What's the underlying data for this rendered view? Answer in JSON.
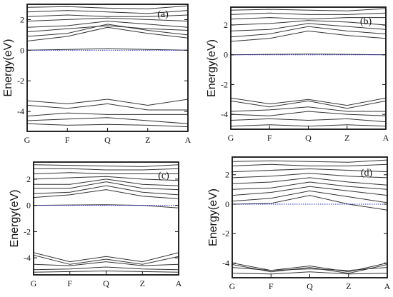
{
  "chart_data": [
    {
      "type": "line",
      "panel_label": "(a)",
      "ylabel": "Energy(eV)",
      "ylim": [
        -5.3,
        3.0
      ],
      "yticks": [
        2,
        0,
        -2,
        -4
      ],
      "xticks": [
        "G",
        "F",
        "Q",
        "Z",
        "A"
      ],
      "fermi_level": 0,
      "series": [
        {
          "x": [
            0,
            1,
            2,
            3,
            4
          ],
          "y": [
            0.0,
            0.05,
            0.1,
            0.05,
            0.0
          ]
        },
        {
          "x": [
            0,
            1,
            2,
            3,
            4
          ],
          "y": [
            0.6,
            0.9,
            1.5,
            1.1,
            0.8
          ]
        },
        {
          "x": [
            0,
            1,
            2,
            3,
            4
          ],
          "y": [
            0.9,
            1.1,
            1.7,
            1.3,
            1.0
          ]
        },
        {
          "x": [
            0,
            1,
            2,
            3,
            4
          ],
          "y": [
            1.2,
            1.4,
            1.6,
            1.4,
            1.3
          ]
        },
        {
          "x": [
            0,
            1,
            2,
            3,
            4
          ],
          "y": [
            1.5,
            1.6,
            1.9,
            1.7,
            1.5
          ]
        },
        {
          "x": [
            0,
            1,
            2,
            3,
            4
          ],
          "y": [
            1.9,
            2.0,
            2.1,
            2.0,
            1.9
          ]
        },
        {
          "x": [
            0,
            1,
            2,
            3,
            4
          ],
          "y": [
            2.2,
            2.3,
            2.2,
            2.2,
            2.3
          ]
        },
        {
          "x": [
            0,
            1,
            2,
            3,
            4
          ],
          "y": [
            2.5,
            2.6,
            2.5,
            2.4,
            2.6
          ]
        },
        {
          "x": [
            0,
            1,
            2,
            3,
            4
          ],
          "y": [
            2.8,
            2.85,
            2.75,
            2.7,
            2.9
          ]
        },
        {
          "x": [
            0,
            1,
            2,
            3,
            4
          ],
          "y": [
            -3.3,
            -3.5,
            -3.2,
            -3.6,
            -3.2
          ]
        },
        {
          "x": [
            0,
            1,
            2,
            3,
            4
          ],
          "y": [
            -3.6,
            -3.8,
            -3.5,
            -3.9,
            -3.9
          ]
        },
        {
          "x": [
            0,
            1,
            2,
            3,
            4
          ],
          "y": [
            -4.3,
            -4.1,
            -4.2,
            -4.2,
            -4.2
          ]
        },
        {
          "x": [
            0,
            1,
            2,
            3,
            4
          ],
          "y": [
            -4.6,
            -4.5,
            -4.4,
            -4.6,
            -4.8
          ]
        },
        {
          "x": [
            0,
            1,
            2,
            3,
            4
          ],
          "y": [
            -4.8,
            -4.9,
            -4.85,
            -4.9,
            -5.0
          ]
        }
      ]
    },
    {
      "type": "line",
      "panel_label": "(b)",
      "ylabel": "Energy(eV)",
      "ylim": [
        -5.0,
        3.2
      ],
      "yticks": [
        2,
        0,
        -2,
        -4
      ],
      "xticks": [
        "G",
        "F",
        "Q",
        "Z",
        "A"
      ],
      "fermi_level": 0,
      "series": [
        {
          "x": [
            0,
            1,
            2,
            3,
            4
          ],
          "y": [
            0.0,
            0.03,
            0.05,
            0.03,
            0.0
          ]
        },
        {
          "x": [
            0,
            1,
            2,
            3,
            4
          ],
          "y": [
            0.9,
            1.1,
            1.6,
            1.3,
            1.1
          ]
        },
        {
          "x": [
            0,
            1,
            2,
            3,
            4
          ],
          "y": [
            1.2,
            1.4,
            1.9,
            1.6,
            1.4
          ]
        },
        {
          "x": [
            0,
            1,
            2,
            3,
            4
          ],
          "y": [
            1.6,
            1.7,
            2.1,
            1.9,
            1.7
          ]
        },
        {
          "x": [
            0,
            1,
            2,
            3,
            4
          ],
          "y": [
            2.0,
            2.1,
            2.3,
            2.2,
            2.0
          ]
        },
        {
          "x": [
            0,
            1,
            2,
            3,
            4
          ],
          "y": [
            2.4,
            2.5,
            2.4,
            2.5,
            2.5
          ]
        },
        {
          "x": [
            0,
            1,
            2,
            3,
            4
          ],
          "y": [
            2.7,
            2.8,
            2.7,
            2.7,
            2.8
          ]
        },
        {
          "x": [
            0,
            1,
            2,
            3,
            4
          ],
          "y": [
            3.0,
            3.05,
            3.0,
            2.95,
            3.1
          ]
        },
        {
          "x": [
            0,
            1,
            2,
            3,
            4
          ],
          "y": [
            -2.9,
            -3.3,
            -3.0,
            -3.4,
            -2.9
          ]
        },
        {
          "x": [
            0,
            1,
            2,
            3,
            4
          ],
          "y": [
            -3.1,
            -3.5,
            -3.1,
            -3.6,
            -3.1
          ]
        },
        {
          "x": [
            0,
            1,
            2,
            3,
            4
          ],
          "y": [
            -3.8,
            -3.7,
            -3.5,
            -3.8,
            -3.8
          ]
        },
        {
          "x": [
            0,
            1,
            2,
            3,
            4
          ],
          "y": [
            -4.0,
            -4.1,
            -3.8,
            -4.0,
            -4.1
          ]
        },
        {
          "x": [
            0,
            1,
            2,
            3,
            4
          ],
          "y": [
            -4.4,
            -4.3,
            -4.4,
            -4.3,
            -4.5
          ]
        },
        {
          "x": [
            0,
            1,
            2,
            3,
            4
          ],
          "y": [
            -4.8,
            -4.7,
            -4.8,
            -4.7,
            -4.8
          ]
        }
      ]
    },
    {
      "type": "line",
      "panel_label": "(c)",
      "ylabel": "Energy(eV)",
      "ylim": [
        -5.3,
        3.3
      ],
      "yticks": [
        2,
        0,
        -2,
        -4
      ],
      "xticks": [
        "G",
        "F",
        "Q",
        "Z",
        "A"
      ],
      "fermi_level": 0,
      "series": [
        {
          "x": [
            0,
            1,
            2,
            3,
            4
          ],
          "y": [
            0.0,
            0.03,
            0.05,
            0.0,
            -0.2
          ]
        },
        {
          "x": [
            0,
            1,
            2,
            3,
            4
          ],
          "y": [
            0.6,
            0.8,
            1.2,
            0.7,
            0.5
          ]
        },
        {
          "x": [
            0,
            1,
            2,
            3,
            4
          ],
          "y": [
            0.9,
            1.0,
            1.5,
            1.0,
            0.8
          ]
        },
        {
          "x": [
            0,
            1,
            2,
            3,
            4
          ],
          "y": [
            1.3,
            1.3,
            1.8,
            1.3,
            1.2
          ]
        },
        {
          "x": [
            0,
            1,
            2,
            3,
            4
          ],
          "y": [
            1.6,
            1.6,
            2.0,
            1.6,
            1.5
          ]
        },
        {
          "x": [
            0,
            1,
            2,
            3,
            4
          ],
          "y": [
            2.0,
            2.1,
            2.2,
            2.0,
            1.9
          ]
        },
        {
          "x": [
            0,
            1,
            2,
            3,
            4
          ],
          "y": [
            2.4,
            2.5,
            2.4,
            2.4,
            2.4
          ]
        },
        {
          "x": [
            0,
            1,
            2,
            3,
            4
          ],
          "y": [
            2.8,
            2.8,
            2.7,
            2.7,
            2.8
          ]
        },
        {
          "x": [
            0,
            1,
            2,
            3,
            4
          ],
          "y": [
            3.1,
            3.05,
            3.0,
            2.95,
            3.1
          ]
        },
        {
          "x": [
            0,
            1,
            2,
            3,
            4
          ],
          "y": [
            -3.6,
            -4.3,
            -3.9,
            -4.3,
            -3.6
          ]
        },
        {
          "x": [
            0,
            1,
            2,
            3,
            4
          ],
          "y": [
            -3.8,
            -4.5,
            -4.1,
            -4.5,
            -3.9
          ]
        },
        {
          "x": [
            0,
            1,
            2,
            3,
            4
          ],
          "y": [
            -4.5,
            -4.6,
            -4.3,
            -4.6,
            -4.5
          ]
        },
        {
          "x": [
            0,
            1,
            2,
            3,
            4
          ],
          "y": [
            -4.9,
            -4.85,
            -4.7,
            -4.85,
            -4.9
          ]
        },
        {
          "x": [
            0,
            1,
            2,
            3,
            4
          ],
          "y": [
            -5.1,
            -5.05,
            -5.0,
            -5.05,
            -5.1
          ]
        }
      ]
    },
    {
      "type": "line",
      "panel_label": "(d)",
      "ylabel": "Energy(eV)",
      "ylim": [
        -5.0,
        3.2
      ],
      "yticks": [
        2,
        0,
        -2,
        -4
      ],
      "xticks": [
        "G",
        "F",
        "Q",
        "Z",
        "A"
      ],
      "fermi_level": 0,
      "series": [
        {
          "x": [
            0,
            1,
            2,
            3,
            4
          ],
          "y": [
            0.0,
            0.05,
            0.6,
            0.0,
            -0.4
          ]
        },
        {
          "x": [
            0,
            1,
            2,
            3,
            4
          ],
          "y": [
            0.2,
            0.4,
            0.9,
            0.5,
            0.1
          ]
        },
        {
          "x": [
            0,
            1,
            2,
            3,
            4
          ],
          "y": [
            0.6,
            0.8,
            1.2,
            0.9,
            0.6
          ]
        },
        {
          "x": [
            0,
            1,
            2,
            3,
            4
          ],
          "y": [
            1.0,
            1.1,
            1.5,
            1.2,
            1.0
          ]
        },
        {
          "x": [
            0,
            1,
            2,
            3,
            4
          ],
          "y": [
            1.4,
            1.5,
            1.8,
            1.5,
            1.3
          ]
        },
        {
          "x": [
            0,
            1,
            2,
            3,
            4
          ],
          "y": [
            1.8,
            1.9,
            2.1,
            1.9,
            1.8
          ]
        },
        {
          "x": [
            0,
            1,
            2,
            3,
            4
          ],
          "y": [
            2.2,
            2.3,
            2.4,
            2.3,
            2.2
          ]
        },
        {
          "x": [
            0,
            1,
            2,
            3,
            4
          ],
          "y": [
            2.6,
            2.7,
            2.6,
            2.6,
            2.7
          ]
        },
        {
          "x": [
            0,
            1,
            2,
            3,
            4
          ],
          "y": [
            2.9,
            2.95,
            2.9,
            2.85,
            3.0
          ]
        },
        {
          "x": [
            0,
            1,
            2,
            3,
            4
          ],
          "y": [
            -4.0,
            -4.5,
            -4.2,
            -4.6,
            -4.0
          ]
        },
        {
          "x": [
            0,
            1,
            2,
            3,
            4
          ],
          "y": [
            -4.1,
            -4.6,
            -4.3,
            -4.7,
            -4.1
          ]
        },
        {
          "x": [
            0,
            1,
            2,
            3,
            4
          ],
          "y": [
            -4.3,
            -4.5,
            -4.4,
            -4.5,
            -4.3
          ]
        },
        {
          "x": [
            0,
            1,
            2,
            3,
            4
          ],
          "y": [
            -4.7,
            -4.75,
            -4.6,
            -4.75,
            -4.7
          ]
        }
      ]
    }
  ]
}
